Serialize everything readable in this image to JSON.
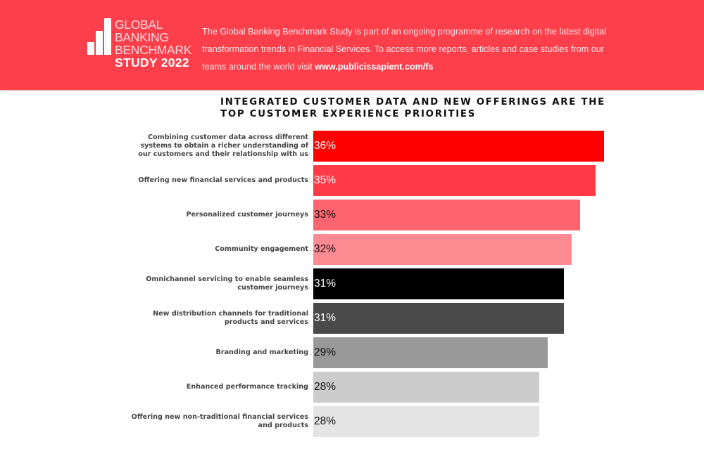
{
  "header": {
    "logo": {
      "icon": "bar-chart-icon",
      "lines": [
        "GLOBAL",
        "BANKING",
        "BENCHMARK"
      ],
      "bold_line": "STUDY 2022"
    },
    "intro_text": "The Global Banking Benchmark Study is part of an ongoing programme of research on the latest digital transformation trends in Financial Services. To access more reports, articles and case studies from our teams around the world visit ",
    "intro_link": "www.publicissapient.com/fs",
    "banner_color": "#fd3f4b"
  },
  "chart_data": {
    "type": "bar",
    "orientation": "horizontal",
    "title": "INTEGRATED CUSTOMER DATA AND NEW OFFERINGS ARE THE TOP CUSTOMER EXPERIENCE PRIORITIES",
    "xlabel": "",
    "ylabel": "",
    "unit": "%",
    "xlim": [
      0,
      36
    ],
    "grid": false,
    "legend": "none",
    "categories": [
      "Combining customer data across different systems to obtain a richer understanding of our customers and their relationship with us",
      "Offering new financial services and products",
      "Personalized customer journeys",
      "Community engagement",
      "Omnichannel servicing to enable seamless customer journeys",
      "New distribution channels for traditional products and services",
      "Branding and marketing",
      "Enhanced performance tracking",
      "Offering new non-traditional financial services and products"
    ],
    "values": [
      36,
      35,
      33,
      32,
      31,
      31,
      29,
      28,
      28
    ],
    "value_labels": [
      "36%",
      "35%",
      "33%",
      "32%",
      "31%",
      "31%",
      "29%",
      "28%",
      "28%"
    ],
    "bar_colors": [
      "#ff0000",
      "#fe3a47",
      "#fe6470",
      "#fe8b92",
      "#000000",
      "#4a4a4a",
      "#999999",
      "#cccccc",
      "#e4e4e4"
    ],
    "label_colors": [
      "#ffffff",
      "#ffffff",
      "#111111",
      "#111111",
      "#ffffff",
      "#ffffff",
      "#111111",
      "#111111",
      "#111111"
    ]
  }
}
